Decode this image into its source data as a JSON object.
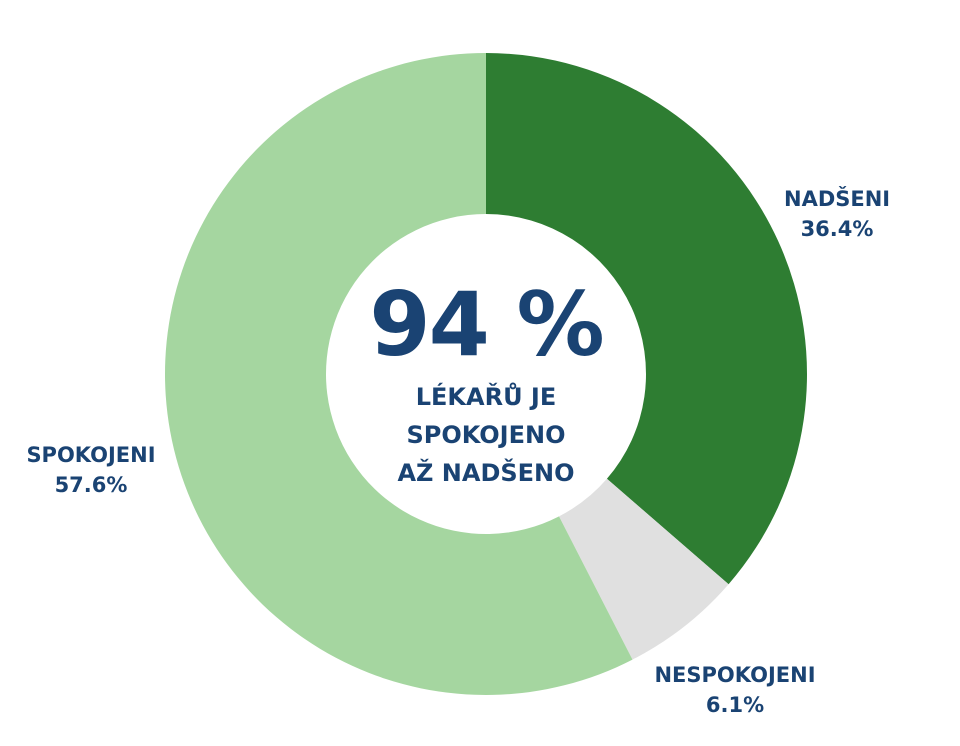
{
  "chart_data": {
    "type": "pie",
    "variant": "donut",
    "title": "",
    "center_text": {
      "value": "94 %",
      "lines": [
        "LÉKAŘŮ JE",
        "SPOKOJENO",
        "AŽ NADŠENO"
      ]
    },
    "categories": [
      "NADŠENI",
      "NESPOKOJENI",
      "SPOKOJENI"
    ],
    "values": [
      36.4,
      6.1,
      57.6
    ],
    "value_labels": [
      "36.4%",
      "6.1%",
      "57.6%"
    ],
    "colors": [
      "#2e7d32",
      "#e0e0e0",
      "#a5d6a0"
    ],
    "start_angle_deg": 0,
    "direction": "clockwise",
    "legend": "none (direct labels)"
  },
  "labels": {
    "nadseni": {
      "name": "NADŠENI",
      "value": "36.4%"
    },
    "nespokojeni": {
      "name": "NESPOKOJENI",
      "value": "6.1%"
    },
    "spokojeni": {
      "name": "SPOKOJENI",
      "value": "57.6%"
    }
  },
  "center": {
    "value": "94 %",
    "line1": "LÉKAŘŮ JE",
    "line2": "SPOKOJENO",
    "line3": "AŽ NADŠENO"
  },
  "colors": {
    "text": "#1a4373",
    "nadseni": "#2e7d32",
    "nespokojeni": "#e0e0e0",
    "spokojeni": "#a5d6a0"
  }
}
